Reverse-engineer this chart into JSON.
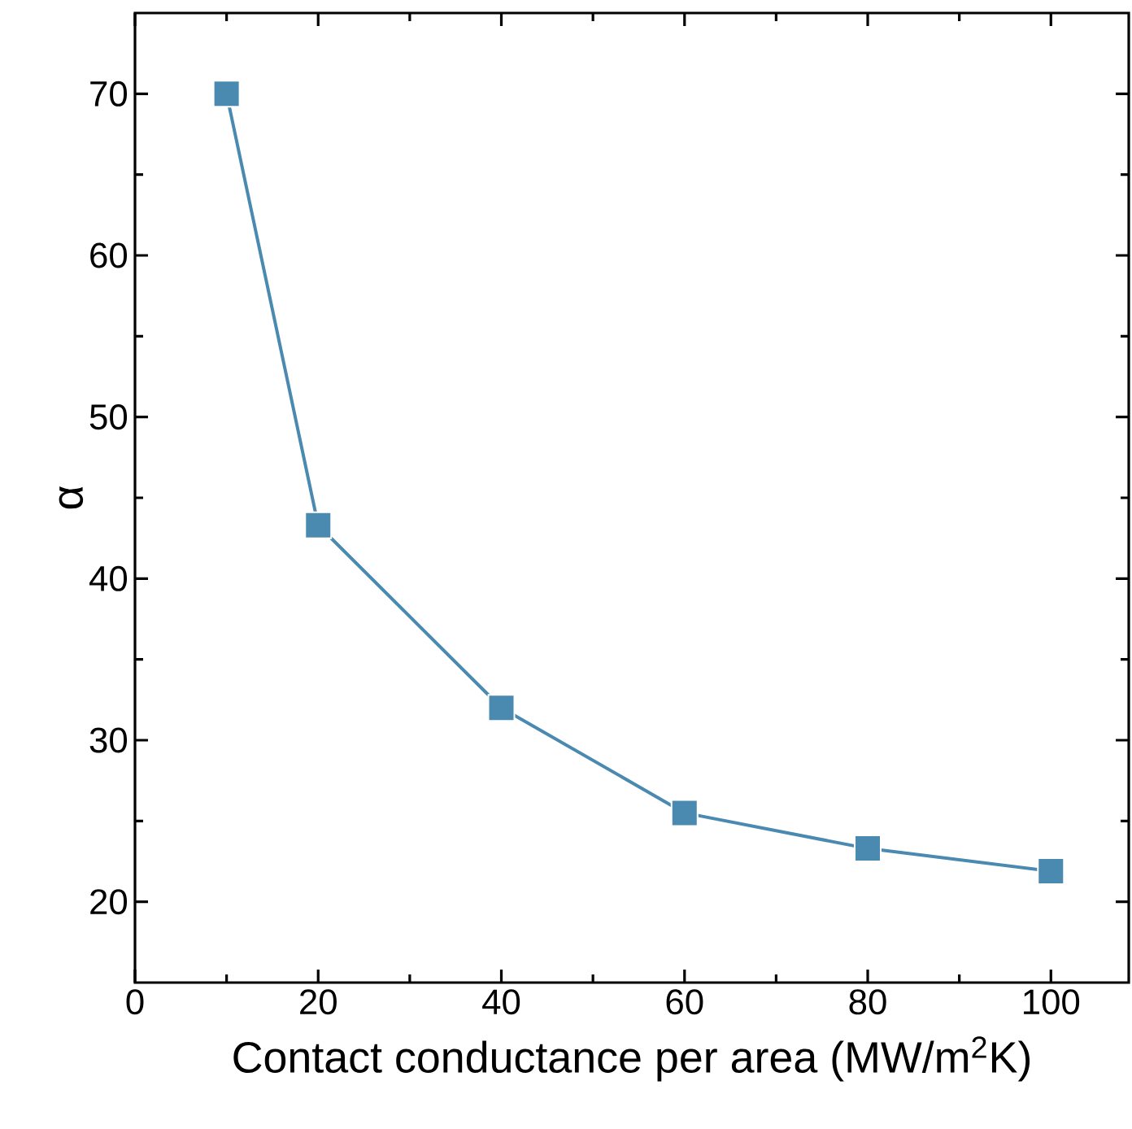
{
  "chart_data": {
    "type": "line",
    "xlabel": "Contact conductance per area (MW/m$^{2}$K)",
    "ylabel": "α",
    "x": [
      10,
      20,
      40,
      60,
      80,
      100
    ],
    "series": [
      {
        "color": "#4a8ab0",
        "values": [
          70,
          43.3,
          32,
          25.5,
          23.3,
          21.9
        ]
      }
    ],
    "xlim": [
      0,
      108.5
    ],
    "ylim": [
      15,
      75
    ],
    "xticks": [
      0,
      20,
      40,
      60,
      80,
      100
    ],
    "yticks": [
      20,
      30,
      40,
      50,
      60,
      70
    ],
    "marker": "square",
    "line_style": "solid",
    "grid": false
  }
}
